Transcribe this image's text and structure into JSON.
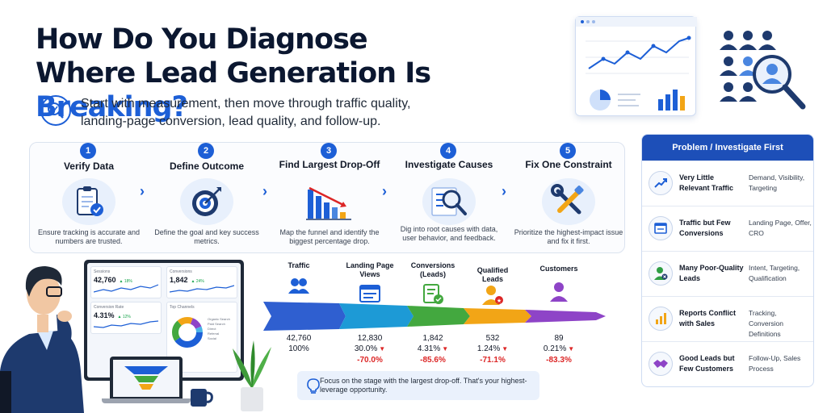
{
  "title": {
    "line1": "How Do You Diagnose",
    "line2_prefix": "Where Lead Generation Is ",
    "line2_accent": "Breaking?"
  },
  "subtitle": "Start with measurement, then move through traffic quality, landing-page conversion, lead quality, and follow-up.",
  "steps": [
    {
      "num": "1",
      "title": "Verify Data",
      "desc": "Ensure tracking is accurate and numbers are trusted.",
      "icon": "clipboard-check-icon"
    },
    {
      "num": "2",
      "title": "Define Outcome",
      "desc": "Define the goal and key success metrics.",
      "icon": "target-icon"
    },
    {
      "num": "3",
      "title": "Find Largest Drop-Off",
      "desc": "Map the funnel and identify the biggest percentage drop.",
      "icon": "bar-drop-icon"
    },
    {
      "num": "4",
      "title": "Investigate Causes",
      "desc": "Dig into root causes with data, user behavior, and feedback.",
      "icon": "magnifier-list-icon"
    },
    {
      "num": "5",
      "title": "Fix One Constraint",
      "desc": "Prioritize the highest-impact issue and fix it first.",
      "icon": "wrench-icon"
    }
  ],
  "dashboard": {
    "sessions_label": "Sessions",
    "sessions_value": "42,760",
    "sessions_change": "▲ 18%",
    "conversions_label": "Conversions",
    "conversions_value": "1,842",
    "conversions_change": "▲ 24%",
    "rate_label": "Conversion Rate",
    "rate_value": "4.31%",
    "rate_change": "▲ 12%",
    "channels_label": "Top Channels",
    "channels": [
      "Organic Search",
      "Paid Search",
      "Direct",
      "Referral",
      "Social"
    ]
  },
  "funnel": {
    "stages": [
      {
        "label": "Traffic",
        "count": "42,760",
        "rate": "100%",
        "drop": "",
        "color": "#2f5fd0",
        "icon": "users-icon"
      },
      {
        "label": "Landing Page Views",
        "count": "12,830",
        "rate": "30.0%",
        "drop": "-70.0%",
        "color": "#1d9ad6",
        "icon": "browser-icon"
      },
      {
        "label": "Conversions (Leads)",
        "count": "1,842",
        "rate": "4.31%",
        "drop": "-85.6%",
        "color": "#43a83f",
        "icon": "form-check-icon"
      },
      {
        "label": "Qualified Leads",
        "count": "532",
        "rate": "1.24%",
        "drop": "-71.1%",
        "color": "#f2a516",
        "icon": "user-star-icon"
      },
      {
        "label": "Customers",
        "count": "89",
        "rate": "0.21%",
        "drop": "-83.3%",
        "color": "#8e44c7",
        "icon": "user-icon"
      }
    ],
    "callout": "Focus on the stage with the largest drop-off. That's your highest-leverage opportunity."
  },
  "table": {
    "header": "Problem / Investigate First",
    "rows": [
      {
        "problem": "Very Little Relevant Traffic",
        "investigate": "Demand, Visibility, Targeting",
        "icon": "trend-up-icon",
        "color": "#1d5fd6"
      },
      {
        "problem": "Traffic but Few Conversions",
        "investigate": "Landing Page, Offer, CRO",
        "icon": "browser-icon",
        "color": "#1d5fd6"
      },
      {
        "problem": "Many Poor-Quality Leads",
        "investigate": "Intent, Targeting, Qualification",
        "icon": "user-x-icon",
        "color": "#2f9e44"
      },
      {
        "problem": "Reports Conflict with Sales",
        "investigate": "Tracking, Conversion Definitions",
        "icon": "bar-chart-icon",
        "color": "#f2a516"
      },
      {
        "problem": "Good Leads but Few Customers",
        "investigate": "Follow-Up, Sales Process",
        "icon": "handshake-icon",
        "color": "#8e44c7"
      }
    ]
  }
}
